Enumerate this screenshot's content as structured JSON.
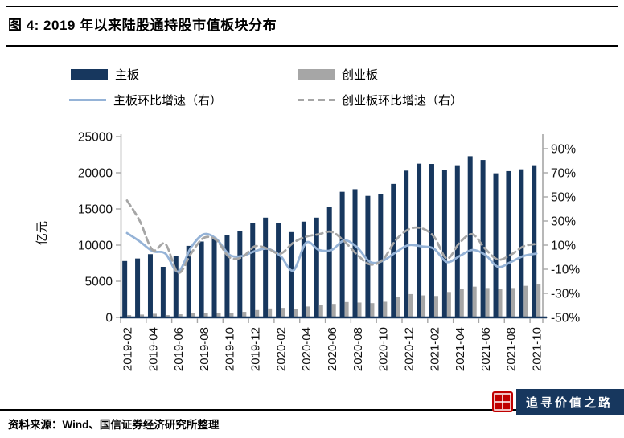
{
  "figure": {
    "title": "图 4: 2019 年以来陆股通持股市值板块分布",
    "source": "资料来源：Wind、国信证券经济研究所整理",
    "watermark": "追寻价值之路"
  },
  "legend": [
    {
      "label": "主板",
      "type": "bar",
      "color": "#17375E"
    },
    {
      "label": "创业板",
      "type": "bar",
      "color": "#A6A6A6"
    },
    {
      "label": "主板环比增速（右）",
      "type": "line",
      "color": "#95B3D7"
    },
    {
      "label": "创业板环比增速（右）",
      "type": "dashed-line",
      "color": "#A6A6A6"
    }
  ],
  "chart_data": {
    "type": "bar+line",
    "title": "2019 年以来陆股通持股市值板块分布",
    "categories": [
      "2019-02",
      "2019-03",
      "2019-04",
      "2019-05",
      "2019-06",
      "2019-07",
      "2019-08",
      "2019-09",
      "2019-10",
      "2019-11",
      "2019-12",
      "2020-01",
      "2020-02",
      "2020-03",
      "2020-04",
      "2020-05",
      "2020-06",
      "2020-07",
      "2020-08",
      "2020-09",
      "2020-10",
      "2020-11",
      "2020-12",
      "2021-01",
      "2021-02",
      "2021-03",
      "2021-04",
      "2021-05",
      "2021-06",
      "2021-07",
      "2021-08",
      "2021-09",
      "2021-10"
    ],
    "x_label_every": 2,
    "left_axis": {
      "label": "亿元",
      "min": 0,
      "max": 25000,
      "step": 5000
    },
    "right_axis": {
      "format": "percent",
      "min": -50,
      "max": 100,
      "step": 20,
      "tick_max": 90
    },
    "series": [
      {
        "name": "主板",
        "type": "bar",
        "axis": "left",
        "color": "#17375E",
        "values": [
          7800,
          8150,
          8750,
          7000,
          8500,
          9900,
          10500,
          11050,
          11400,
          12000,
          13050,
          13800,
          13050,
          11800,
          13250,
          13800,
          15300,
          17370,
          17730,
          16810,
          17100,
          18460,
          20300,
          21260,
          21220,
          20340,
          21040,
          22290,
          21770,
          19930,
          20230,
          20480,
          21040
        ]
      },
      {
        "name": "创业板",
        "type": "bar",
        "axis": "left",
        "color": "#A6A6A6",
        "values": [
          330,
          400,
          510,
          330,
          440,
          590,
          590,
          660,
          660,
          770,
          1020,
          1240,
          1320,
          1140,
          1510,
          1690,
          1870,
          2130,
          2060,
          1980,
          2170,
          2790,
          3230,
          3050,
          2970,
          3520,
          3890,
          4260,
          4070,
          4000,
          4070,
          4370,
          4650
        ]
      },
      {
        "name": "主板环比增速（右）",
        "type": "line",
        "axis": "right",
        "color": "#95B3D7",
        "dash": false,
        "values": [
          20,
          13,
          5,
          3,
          -12,
          8,
          19,
          15,
          2,
          1,
          5,
          7,
          1,
          -11,
          12,
          6,
          6,
          14,
          8,
          -4,
          -3,
          4,
          10,
          9,
          7,
          -4,
          1,
          6,
          2,
          -8,
          -4,
          1,
          3
        ]
      },
      {
        "name": "创业板环比增速（右）",
        "type": "line",
        "axis": "right",
        "color": "#A6A6A6",
        "dash": true,
        "values": [
          47,
          30,
          6,
          11,
          -13,
          3,
          16,
          14,
          0,
          0,
          9,
          7,
          3,
          12,
          17,
          19,
          21,
          13,
          2,
          -6,
          -2,
          14,
          23,
          24,
          17,
          -1,
          12,
          19,
          7,
          -2,
          2,
          9,
          11
        ]
      }
    ],
    "axis_colors": {
      "spine_gray": "#A6A6A6",
      "bottom_axis": "#17375E",
      "tick_text": "#111111"
    }
  }
}
